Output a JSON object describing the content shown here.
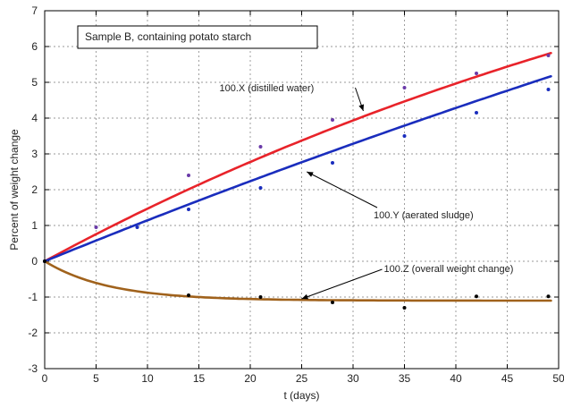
{
  "chart_data": {
    "type": "line",
    "title": "Sample B, containing potato starch",
    "xlabel": "t (days)",
    "ylabel": "Percent of weight change",
    "xlim": [
      0,
      50
    ],
    "ylim": [
      -3,
      7
    ],
    "xticks": [
      0,
      5,
      10,
      15,
      20,
      25,
      30,
      35,
      40,
      45,
      50
    ],
    "yticks": [
      -3,
      -2,
      -1,
      0,
      1,
      2,
      3,
      4,
      5,
      6,
      7
    ],
    "grid": true,
    "series": [
      {
        "name": "100.X (distilled water)",
        "color": "#e8232a",
        "marker_color": "#6a3aa8",
        "fit": {
          "model": "saturating-exp",
          "a": 13.2,
          "k": 0.0118
        },
        "points": [
          [
            0,
            0
          ],
          [
            5,
            0.95
          ],
          [
            14,
            2.4
          ],
          [
            21,
            3.2
          ],
          [
            28,
            3.95
          ],
          [
            35,
            4.85
          ],
          [
            42,
            5.25
          ],
          [
            49,
            5.75
          ]
        ]
      },
      {
        "name": "100.Y (aerated sludge)",
        "color": "#1a2dbd",
        "marker_color": "#1a2dbd",
        "fit": {
          "model": "saturating-exp",
          "a": 26.0,
          "k": 0.0045
        },
        "points": [
          [
            0,
            0
          ],
          [
            9,
            0.95
          ],
          [
            14,
            1.45
          ],
          [
            21,
            2.05
          ],
          [
            28,
            2.75
          ],
          [
            35,
            3.5
          ],
          [
            42,
            4.15
          ],
          [
            49,
            4.8
          ]
        ]
      },
      {
        "name": "100.Z (overall weight change)",
        "color": "#a0621c",
        "marker_color": "#000000",
        "fit": {
          "model": "saturating-exp",
          "a": -1.1,
          "k": 0.16
        },
        "points": [
          [
            0,
            0
          ],
          [
            14,
            -0.95
          ],
          [
            21,
            -1.0
          ],
          [
            28,
            -1.15
          ],
          [
            35,
            -1.3
          ],
          [
            42,
            -0.98
          ],
          [
            49,
            -0.98
          ]
        ]
      }
    ],
    "annotations": [
      {
        "text": "100.X (distilled water)",
        "series": 0,
        "target": [
          31,
          4.2
        ],
        "text_anchor": [
          17,
          4.85
        ]
      },
      {
        "text": "100.Y (aerated sludge)",
        "series": 1,
        "target": [
          25.5,
          2.5
        ],
        "text_anchor": [
          32,
          1.3
        ]
      },
      {
        "text": "100.Z (overall weight change)",
        "series": 2,
        "target": [
          25,
          -1.05
        ],
        "text_anchor": [
          33,
          -0.2
        ]
      }
    ]
  }
}
